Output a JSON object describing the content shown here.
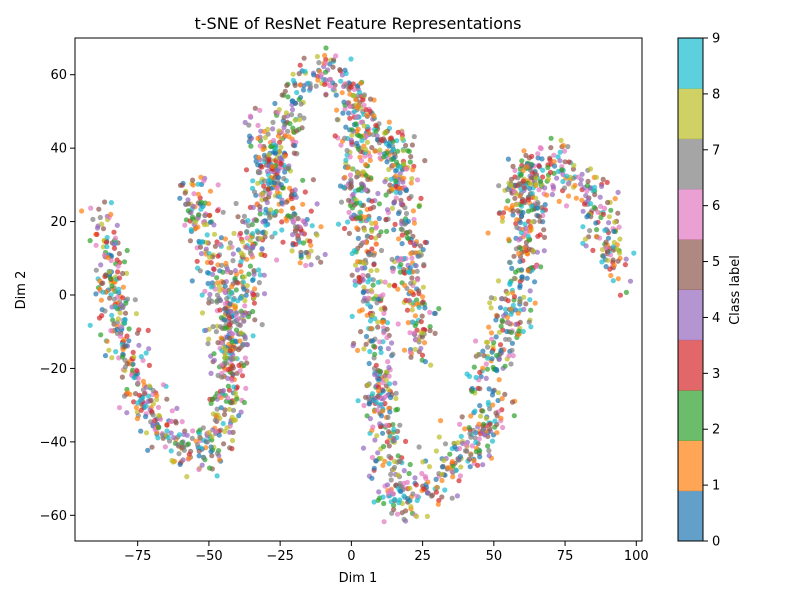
{
  "chart_data": {
    "type": "scatter",
    "title": "t-SNE of ResNet Feature Representations",
    "xlabel": "Dim 1",
    "ylabel": "Dim 2",
    "xlim": [
      -97,
      102
    ],
    "ylim": [
      -67,
      70
    ],
    "xticks": [
      -75,
      -50,
      -25,
      0,
      25,
      50,
      75,
      100
    ],
    "yticks": [
      -60,
      -40,
      -20,
      0,
      20,
      40,
      60
    ],
    "xtick_labels": [
      "−75",
      "−50",
      "−25",
      "0",
      "25",
      "50",
      "75",
      "100"
    ],
    "ytick_labels": [
      "−60",
      "−40",
      "−20",
      "0",
      "20",
      "40",
      "60"
    ],
    "grid": false,
    "legend": "none",
    "colorbar": {
      "label": "Class label",
      "range": [
        0,
        9
      ],
      "ticks": [
        0,
        1,
        2,
        3,
        4,
        5,
        6,
        7,
        8,
        9
      ],
      "tick_labels": [
        "0",
        "1",
        "2",
        "3",
        "4",
        "5",
        "6",
        "7",
        "8",
        "9"
      ],
      "colors": [
        "#1f77b4",
        "#ff7f0e",
        "#2ca02c",
        "#d62728",
        "#9467bd",
        "#8c564b",
        "#e377c2",
        "#7f7f7f",
        "#bcbd22",
        "#17becf"
      ],
      "alpha": 0.7
    },
    "n_classes": 10,
    "point_alpha": 0.7,
    "approx_point_count": 3000,
    "structure_paths": [
      {
        "arm": "left-hook",
        "x": [
          -86,
          -85,
          -83,
          -80,
          -76,
          -72,
          -66,
          -58,
          -52,
          -47
        ],
        "y": [
          22,
          10,
          0,
          -10,
          -22,
          -30,
          -37,
          -41,
          -42,
          -40
        ]
      },
      {
        "arm": "left-upper",
        "x": [
          -47,
          -44,
          -42,
          -40,
          -36,
          -30,
          -25,
          -20
        ],
        "y": [
          -40,
          -30,
          -18,
          -5,
          10,
          28,
          40,
          52
        ]
      },
      {
        "arm": "left-inner",
        "x": [
          -55,
          -52,
          -48,
          -45,
          -42
        ],
        "y": [
          30,
          18,
          8,
          -5,
          -18
        ]
      },
      {
        "arm": "top-left-lobe",
        "x": [
          -35,
          -30,
          -25,
          -20,
          -15
        ],
        "y": [
          45,
          40,
          30,
          20,
          10
        ]
      },
      {
        "arm": "top-arc",
        "x": [
          -20,
          -12,
          -5,
          0,
          5,
          12,
          18
        ],
        "y": [
          55,
          60,
          60,
          55,
          48,
          42,
          38
        ]
      },
      {
        "arm": "center-column",
        "x": [
          0,
          2,
          5,
          8,
          10,
          12,
          15
        ],
        "y": [
          50,
          30,
          10,
          -10,
          -25,
          -38,
          -50
        ]
      },
      {
        "arm": "center-right",
        "x": [
          15,
          17,
          20,
          22,
          24
        ],
        "y": [
          40,
          25,
          10,
          -5,
          -15
        ]
      },
      {
        "arm": "bottom-arc",
        "x": [
          10,
          18,
          28,
          38,
          46,
          52
        ],
        "y": [
          -55,
          -55,
          -52,
          -45,
          -38,
          -30
        ]
      },
      {
        "arm": "right-s",
        "x": [
          45,
          52,
          56,
          60,
          62,
          64,
          62,
          58,
          55
        ],
        "y": [
          -25,
          -15,
          -5,
          5,
          15,
          25,
          32,
          30,
          20
        ]
      },
      {
        "arm": "right-tail",
        "x": [
          58,
          64,
          70,
          76,
          82,
          86,
          90,
          92
        ],
        "y": [
          32,
          34,
          34,
          33,
          30,
          25,
          15,
          6
        ]
      }
    ]
  }
}
